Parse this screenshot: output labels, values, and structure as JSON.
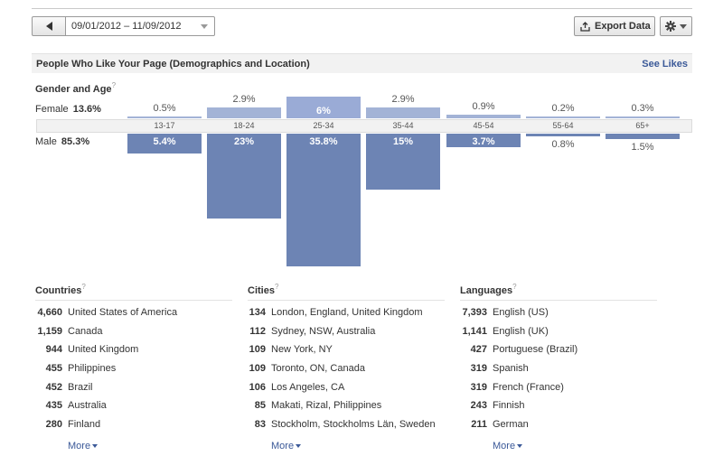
{
  "toolbar": {
    "date_range": "09/01/2012 – 11/09/2012",
    "export_label": "Export Data",
    "prev_icon": "chevron-left-icon",
    "export_icon": "export-icon",
    "settings_icon": "gear-icon"
  },
  "section": {
    "title": "People Who Like Your Page (Demographics and Location)",
    "see_likes": "See Likes"
  },
  "gender_age": {
    "title": "Gender and Age",
    "help": "?",
    "female_label": "Female",
    "female_total": "13.6%",
    "male_label": "Male",
    "male_total": "85.3%"
  },
  "chart_data": {
    "type": "bar",
    "categories": [
      "13-17",
      "18-24",
      "25-34",
      "35-44",
      "45-54",
      "55-64",
      "65+"
    ],
    "series": [
      {
        "name": "Female",
        "values": [
          0.5,
          2.9,
          6,
          2.9,
          0.9,
          0.2,
          0.3
        ],
        "labels": [
          "0.5%",
          "2.9%",
          "6%",
          "2.9%",
          "0.9%",
          "0.2%",
          "0.3%"
        ]
      },
      {
        "name": "Male",
        "values": [
          5.4,
          23,
          35.8,
          15,
          3.7,
          0.8,
          1.5
        ],
        "labels": [
          "5.4%",
          "23%",
          "35.8%",
          "15%",
          "3.7%",
          "0.8%",
          "1.5%"
        ]
      }
    ],
    "highlight_index": 2,
    "colors": {
      "female": "#a3b3d6",
      "male": "#6d84b4"
    }
  },
  "countries": {
    "title": "Countries",
    "help": "?",
    "items": [
      {
        "count": "4,660",
        "name": "United States of America"
      },
      {
        "count": "1,159",
        "name": "Canada"
      },
      {
        "count": "944",
        "name": "United Kingdom"
      },
      {
        "count": "455",
        "name": "Philippines"
      },
      {
        "count": "452",
        "name": "Brazil"
      },
      {
        "count": "435",
        "name": "Australia"
      },
      {
        "count": "280",
        "name": "Finland"
      }
    ],
    "more": "More"
  },
  "cities": {
    "title": "Cities",
    "help": "?",
    "items": [
      {
        "count": "134",
        "name": "London, England, United Kingdom"
      },
      {
        "count": "112",
        "name": "Sydney, NSW, Australia"
      },
      {
        "count": "109",
        "name": "New York, NY"
      },
      {
        "count": "109",
        "name": "Toronto, ON, Canada"
      },
      {
        "count": "106",
        "name": "Los Angeles, CA"
      },
      {
        "count": "85",
        "name": "Makati, Rizal, Philippines"
      },
      {
        "count": "83",
        "name": "Stockholm, Stockholms Län, Sweden"
      }
    ],
    "more": "More"
  },
  "languages": {
    "title": "Languages",
    "help": "?",
    "items": [
      {
        "count": "7,393",
        "name": "English (US)"
      },
      {
        "count": "1,141",
        "name": "English (UK)"
      },
      {
        "count": "427",
        "name": "Portuguese (Brazil)"
      },
      {
        "count": "319",
        "name": "Spanish"
      },
      {
        "count": "319",
        "name": "French (France)"
      },
      {
        "count": "243",
        "name": "Finnish"
      },
      {
        "count": "211",
        "name": "German"
      }
    ],
    "more": "More"
  }
}
